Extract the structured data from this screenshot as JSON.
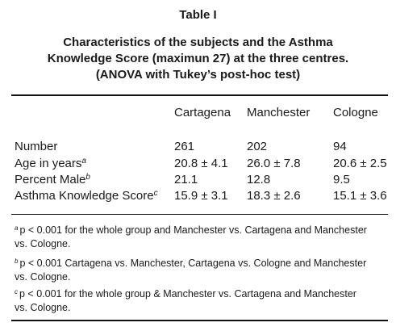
{
  "table": {
    "label": "Table I",
    "caption_line1": "Characteristics of the subjects and the Asthma",
    "caption_line2": "Knowledge Score (maximun 27) at the three centres.",
    "caption_line3": "(ANOVA with Tukey’s post-hoc test)",
    "columns": [
      "Cartagena",
      "Manchester",
      "Cologne"
    ],
    "rows": [
      {
        "label": "Number",
        "sup": "",
        "values": [
          "261",
          "202",
          "94"
        ]
      },
      {
        "label": "Age in years",
        "sup": "a",
        "values": [
          "20.8 ± 4.1",
          "26.0 ± 7.8",
          "20.6 ± 2.5"
        ]
      },
      {
        "label": "Percent Male",
        "sup": "b",
        "values": [
          "21.1",
          "12.8",
          "9.5"
        ]
      },
      {
        "label": "Asthma Knowledge Score",
        "sup": "c",
        "values": [
          "15.9 ± 3.1",
          "18.3 ± 2.6",
          "15.1 ± 3.6"
        ]
      }
    ],
    "footnotes": [
      {
        "mark": "a",
        "line1": "p < 0.001 for the whole group and Manchester vs. Cartagena and Manchester",
        "line2": "vs. Cologne."
      },
      {
        "mark": "b",
        "line1": "p < 0.001 Cartagena vs. Manchester, Cartagena vs. Cologne and Manchester",
        "line2": "vs. Cologne."
      },
      {
        "mark": "c",
        "line1": "p < 0.001 for the whole group & Manchester vs. Cartagena and Manchester",
        "line2": "vs. Cologne."
      }
    ]
  }
}
